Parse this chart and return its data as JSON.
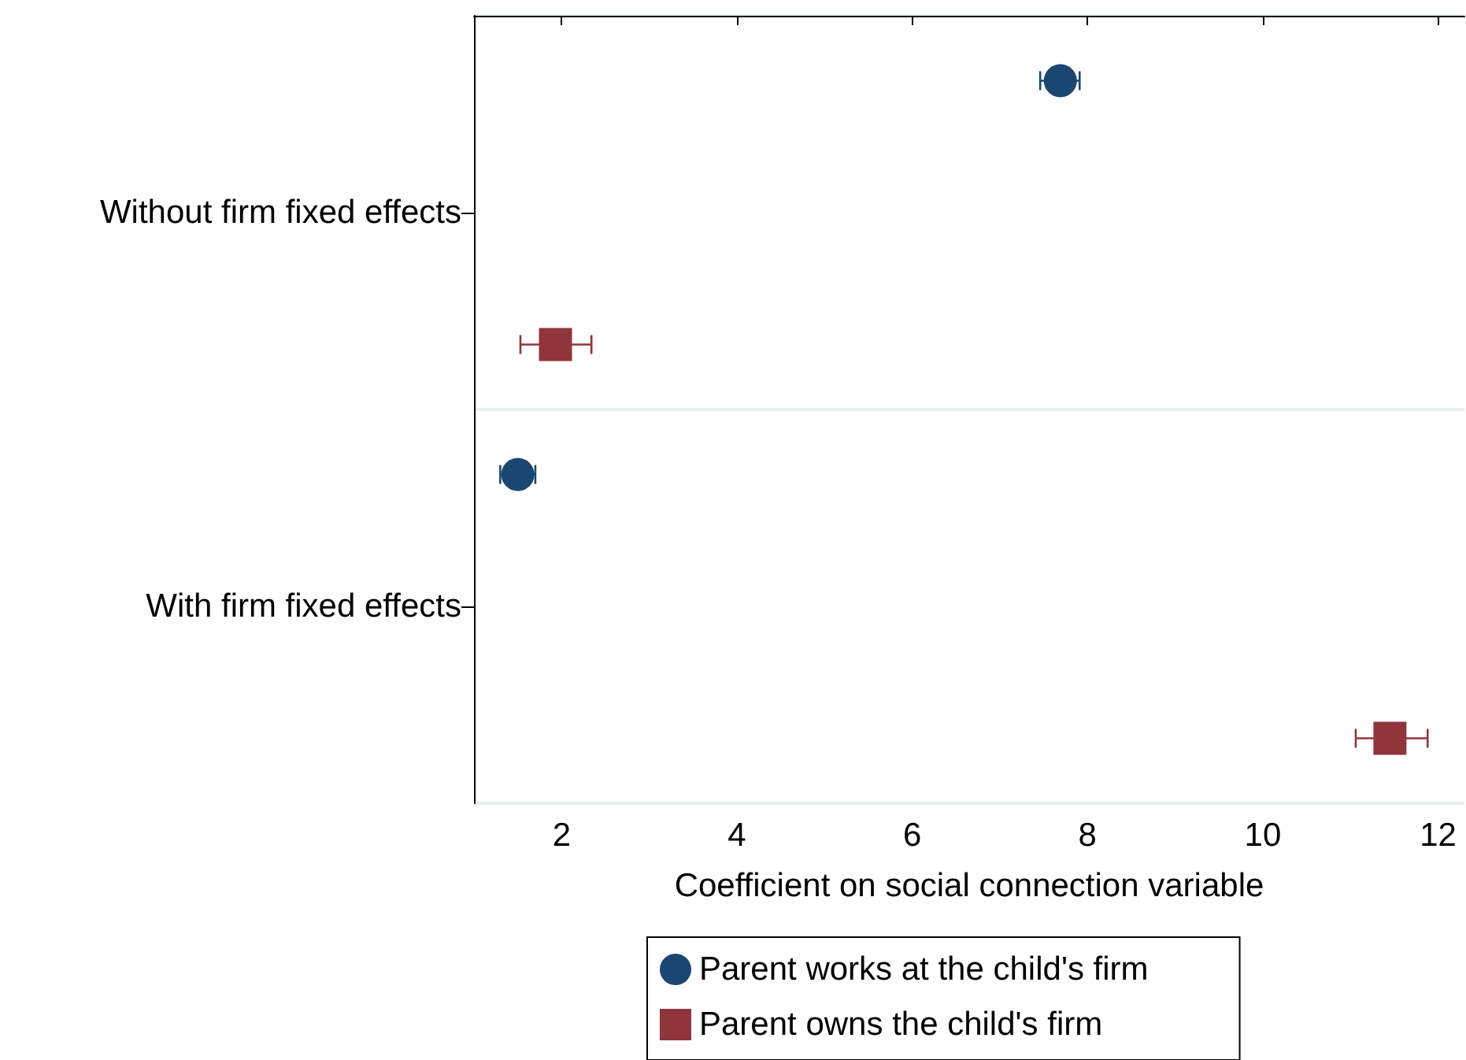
{
  "chart_data": {
    "type": "scatter",
    "orientation": "horizontal",
    "xlabel": "Coefficient on social connection variable",
    "categories": [
      "Without firm fixed effects",
      "With firm fixed effects"
    ],
    "xlim": [
      1,
      12.3
    ],
    "xticks": [
      2,
      4,
      6,
      8,
      10,
      12
    ],
    "grid": "y",
    "legend": "bottom",
    "series": [
      {
        "name": "Parent works at the child's firm",
        "color": "#1a476f",
        "marker": "circle",
        "values": [
          7.69,
          1.5
        ],
        "errors": [
          [
            7.46,
            7.91
          ],
          [
            1.3,
            1.7
          ]
        ]
      },
      {
        "name": "Parent owns the child's firm",
        "color": "#90353b",
        "marker": "square",
        "values": [
          1.93,
          11.45
        ],
        "errors": [
          [
            1.53,
            2.34
          ],
          [
            11.06,
            11.88
          ]
        ]
      }
    ]
  }
}
